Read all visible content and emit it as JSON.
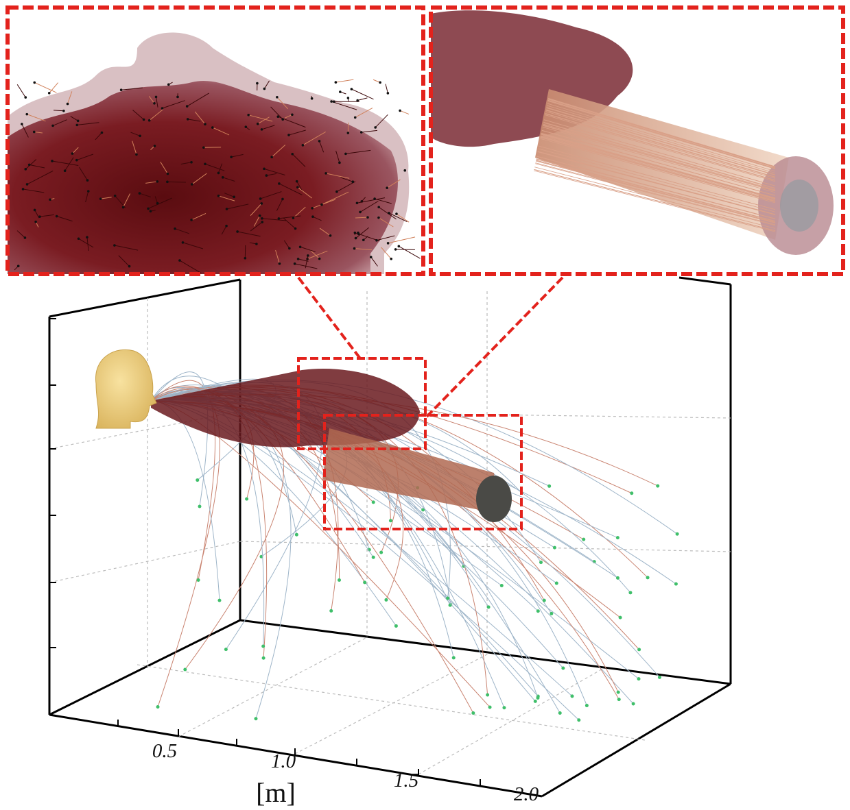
{
  "axis": {
    "tick_labels": [
      "0.5",
      "1.0",
      "1.5",
      "2.0"
    ],
    "unit_label": "[m]"
  }
}
